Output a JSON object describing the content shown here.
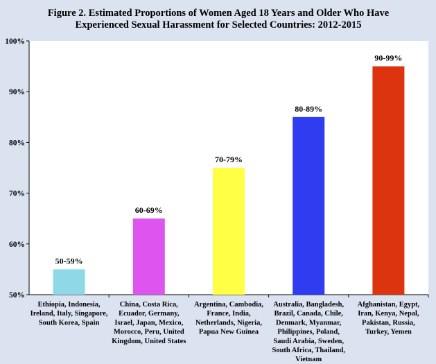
{
  "chart_data": {
    "type": "bar",
    "title_lines": [
      "Figure 2. Estimated Proportions of Women Aged 18 Years and Older Who Have",
      "Experienced Sexual Harassment for Selected Countries:  2012-2015"
    ],
    "xlabel": "",
    "ylabel": "",
    "ylim": [
      50,
      100
    ],
    "yticks": [
      50,
      60,
      70,
      80,
      90,
      100
    ],
    "ytick_labels": [
      "50%",
      "60%",
      "70%",
      "80%",
      "90%",
      "100%"
    ],
    "grid": false,
    "legend": "none",
    "categories": [
      "Ethiopia, Indonesia, Ireland, Italy, Singapore, South Korea, Spain",
      "China, Costa Rica, Ecuador, Germany, Israel, Japan, Mexico, Morocco, Peru, United Kingdom, United States",
      "Argentina, Cambodia, France, India, Netherlands, Nigeria, Papua New Guinea",
      "Australia, Bangladesh, Brazil, Canada, Chile, Denmark, Myanmar, Philippines, Poland, Saudi Arabia, Sweden, South Africa, Thailand, Vietnam",
      "Afghanistan, Egypt, Iran, Kenya, Nepal, Pakistan, Russia, Turkey, Yemen"
    ],
    "category_label_lines": [
      [
        "Ethiopia, Indonesia,",
        "Ireland, Italy, Singapore,",
        "South Korea, Spain"
      ],
      [
        "China, Costa Rica,",
        "Ecuador, Germany,",
        "Israel, Japan, Mexico,",
        "Morocco, Peru, United",
        "Kingdom, United States"
      ],
      [
        "Argentina, Cambodia,",
        "France, India,",
        "Netherlands, Nigeria,",
        "Papua New Guinea"
      ],
      [
        "Australia, Bangladesh,",
        "Brazil, Canada, Chile,",
        "Denmark, Myanmar,",
        "Philippines, Poland,",
        "Saudi Arabia, Sweden,",
        "South Africa, Thailand,",
        "Vietnam"
      ],
      [
        "Afghanistan, Egypt,",
        "Iran, Kenya, Nepal,",
        "Pakistan, Russia,",
        "Turkey, Yemen"
      ]
    ],
    "values": [
      55,
      65,
      75,
      85,
      95
    ],
    "data_labels": [
      "50-59%",
      "60-69%",
      "70-79%",
      "80-89%",
      "90-99%"
    ],
    "colors": [
      "#8fd8e8",
      "#dd55ee",
      "#ffff44",
      "#2f3cf0",
      "#dd3410"
    ]
  }
}
